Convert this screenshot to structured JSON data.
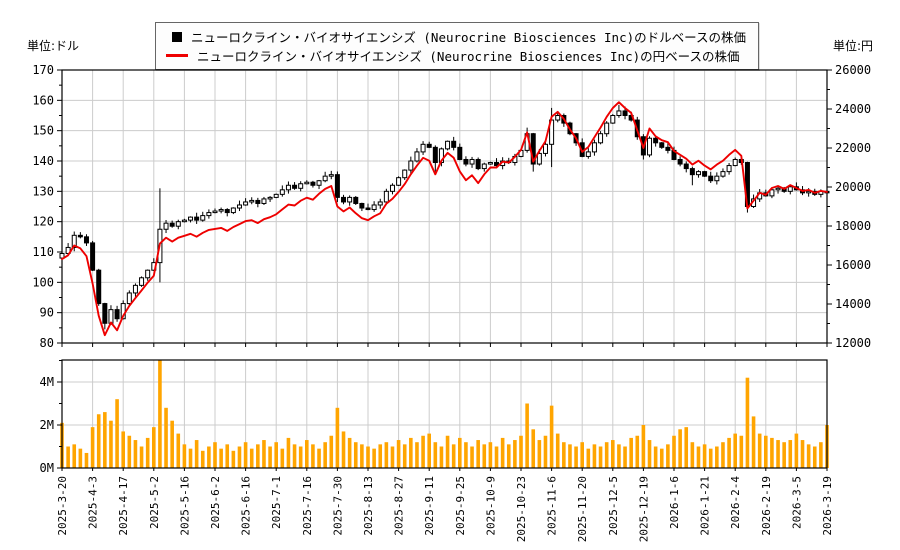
{
  "legend": {
    "items": [
      {
        "marker": "black-square-icon",
        "label": "ニューロクライン・バイオサイエンシズ (Neurocrine Biosciences Inc)のドルベースの株価"
      },
      {
        "marker": "red-line-icon",
        "label": "ニューロクライン・バイオサイエンシズ (Neurocrine Biosciences Inc)の円ベースの株価"
      }
    ]
  },
  "axes": {
    "left_unit": "単位:ドル",
    "right_unit": "単位:円",
    "left_ticks": [
      170,
      160,
      150,
      140,
      130,
      120,
      110,
      100,
      90,
      80
    ],
    "left_range": [
      80,
      170
    ],
    "right_ticks": [
      26000,
      24000,
      22000,
      20000,
      18000,
      16000,
      14000,
      12000
    ],
    "right_range": [
      12000,
      26000
    ],
    "volume_ticks": [
      {
        "v": 4,
        "label": "4M"
      },
      {
        "v": 2,
        "label": "2M"
      },
      {
        "v": 0,
        "label": "0M"
      }
    ],
    "x_labels": [
      "2025-3-20",
      "2025-4-3",
      "2025-4-17",
      "2025-5-2",
      "2025-5-16",
      "2025-6-2",
      "2025-6-16",
      "2025-7-1",
      "2025-7-16",
      "2025-7-30",
      "2025-8-13",
      "2025-8-27",
      "2025-9-11",
      "2025-9-25",
      "2025-10-9",
      "2025-10-23",
      "2025-11-6",
      "2025-11-20",
      "2025-12-5",
      "2025-12-19",
      "2026-1-6",
      "2026-1-21",
      "2026-2-4",
      "2026-2-19",
      "2026-3-5",
      "2026-3-19"
    ]
  },
  "colors": {
    "candle_outline": "#000000",
    "candle_up_fill": "#ffffff",
    "candle_down_fill": "#000000",
    "jpy_line": "#ee0000",
    "volume_bar": "#ffa500",
    "grid": "#cccccc",
    "frame": "#000000",
    "text": "#000000"
  },
  "chart_data": {
    "type": "candlestick+line+volume",
    "title": "",
    "series_names": [
      "USD price (candlestick, left axis)",
      "JPY price (red line, right axis)",
      "Volume (orange bars, bottom panel)"
    ],
    "legend_position": "top-center",
    "grid": true,
    "open_first": 108,
    "usd_close": [
      109.5,
      111.5,
      115.5,
      115,
      113,
      104,
      93,
      86.5,
      91,
      88,
      93,
      96.5,
      99,
      101.5,
      104,
      106.5,
      117.5,
      119.5,
      118.5,
      120,
      120.5,
      121.5,
      120.5,
      122,
      123,
      123.5,
      124,
      123,
      124.5,
      125.5,
      126.5,
      127,
      126,
      127.5,
      128,
      129,
      130.5,
      132,
      131,
      132.5,
      133,
      132,
      133.5,
      135,
      135.5,
      128,
      126.5,
      128,
      126,
      124.5,
      124,
      125.5,
      126.5,
      130,
      132,
      134.5,
      137,
      140,
      143,
      145.5,
      144.5,
      139.5,
      144,
      146.5,
      144.5,
      140.5,
      139,
      140.5,
      137.5,
      139,
      139.5,
      138.5,
      140,
      139.5,
      141.5,
      143.5,
      149,
      139,
      142.5,
      145.5,
      153.5,
      155,
      152.5,
      149,
      146,
      141.5,
      143,
      146,
      149,
      152.5,
      155,
      156.5,
      155,
      153.5,
      148,
      142,
      147.5,
      146,
      144.5,
      143.5,
      140.5,
      139,
      137.5,
      135.5,
      136.5,
      135,
      133.5,
      135,
      136.5,
      138.5,
      140.5,
      139.5,
      125,
      127.5,
      129.5,
      128.5,
      130.5,
      131,
      130,
      131.5,
      130.5,
      129.5,
      130,
      129,
      130,
      129.5
    ],
    "jpy_close": [
      16300,
      16500,
      17000,
      16850,
      16450,
      15050,
      13400,
      12400,
      13050,
      12650,
      13400,
      13900,
      14300,
      14700,
      15100,
      15450,
      17100,
      17400,
      17200,
      17400,
      17500,
      17600,
      17450,
      17650,
      17800,
      17850,
      17900,
      17750,
      17950,
      18100,
      18250,
      18300,
      18150,
      18350,
      18450,
      18600,
      18850,
      19100,
      19050,
      19300,
      19450,
      19350,
      19650,
      19900,
      20050,
      19000,
      18750,
      18950,
      18650,
      18400,
      18300,
      18500,
      18650,
      19150,
      19400,
      19750,
      20150,
      20650,
      21100,
      21500,
      21350,
      20650,
      21350,
      21750,
      21500,
      20800,
      20350,
      20600,
      20200,
      20650,
      21000,
      21000,
      21300,
      21250,
      21550,
      21900,
      22800,
      21300,
      21850,
      22350,
      23600,
      23850,
      23500,
      22950,
      22500,
      21800,
      22050,
      22550,
      23050,
      23600,
      24050,
      24350,
      24050,
      23800,
      22900,
      22000,
      23000,
      22600,
      22400,
      22300,
      21850,
      21650,
      21450,
      21150,
      21350,
      21100,
      20900,
      21150,
      21350,
      21650,
      21900,
      21600,
      18900,
      19300,
      19700,
      19600,
      19950,
      20050,
      19900,
      20100,
      19950,
      19800,
      19850,
      19700,
      19800,
      19750
    ],
    "volume_m": [
      2.1,
      1.0,
      1.1,
      0.9,
      0.7,
      1.9,
      2.5,
      2.6,
      2.2,
      3.2,
      1.7,
      1.5,
      1.3,
      1.0,
      1.4,
      1.9,
      5.2,
      2.8,
      2.2,
      1.6,
      1.1,
      0.9,
      1.3,
      0.8,
      1.0,
      1.2,
      0.9,
      1.1,
      0.8,
      1.0,
      1.2,
      0.9,
      1.1,
      1.3,
      1.0,
      1.2,
      0.9,
      1.4,
      1.1,
      1.0,
      1.3,
      1.1,
      0.9,
      1.2,
      1.5,
      2.8,
      1.7,
      1.4,
      1.2,
      1.1,
      1.0,
      0.9,
      1.1,
      1.2,
      1.0,
      1.3,
      1.1,
      1.4,
      1.2,
      1.5,
      1.6,
      1.2,
      1.0,
      1.5,
      1.1,
      1.4,
      1.2,
      1.0,
      1.3,
      1.1,
      1.2,
      1.0,
      1.4,
      1.1,
      1.3,
      1.5,
      3.0,
      1.8,
      1.3,
      1.5,
      2.9,
      1.6,
      1.2,
      1.1,
      1.0,
      1.2,
      0.9,
      1.1,
      1.0,
      1.2,
      1.3,
      1.1,
      1.0,
      1.4,
      1.5,
      2.0,
      1.3,
      1.0,
      0.9,
      1.1,
      1.5,
      1.8,
      1.9,
      1.2,
      1.0,
      1.1,
      0.9,
      1.0,
      1.2,
      1.4,
      1.6,
      1.5,
      4.2,
      2.4,
      1.6,
      1.5,
      1.4,
      1.3,
      1.2,
      1.3,
      1.6,
      1.3,
      1.1,
      1.0,
      1.2,
      2.0
    ],
    "wick_overrides": {
      "0": {
        "low": 107.5
      },
      "7": {
        "low": 84.5
      },
      "16": {
        "high": 131,
        "low": 100
      },
      "45": {
        "low": 126.5
      },
      "61": {
        "low": 136.5
      },
      "76": {
        "high": 151
      },
      "77": {
        "low": 136.5
      },
      "80": {
        "high": 157.5,
        "low": 138
      },
      "91": {
        "high": 158.5
      },
      "95": {
        "low": 140.5
      },
      "103": {
        "low": 132
      },
      "112": {
        "low": 123
      }
    }
  }
}
